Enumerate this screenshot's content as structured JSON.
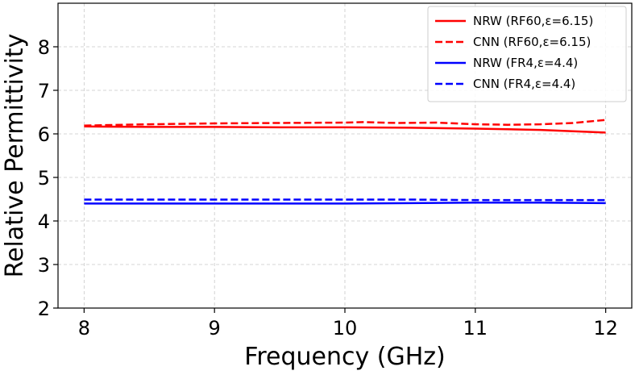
{
  "chart_data": {
    "type": "line",
    "xlabel": "Frequency (GHz)",
    "ylabel": "Relative Permittivity",
    "xlim": [
      7.8,
      12.2
    ],
    "ylim": [
      2,
      9
    ],
    "xticks": [
      8,
      9,
      10,
      11,
      12
    ],
    "yticks": [
      2,
      3,
      4,
      5,
      6,
      7,
      8
    ],
    "grid": true,
    "legend_position": "top-right",
    "series": [
      {
        "name": "NRW (RF60,ε=6.15)",
        "color": "#ff0000",
        "style": "solid",
        "x": [
          8,
          8.5,
          9,
          9.5,
          10,
          10.5,
          11,
          11.5,
          12
        ],
        "y": [
          6.17,
          6.16,
          6.16,
          6.15,
          6.15,
          6.14,
          6.12,
          6.09,
          6.03
        ]
      },
      {
        "name": "CNN (RF60,ε=6.15)",
        "color": "#ff0000",
        "style": "dashed",
        "x": [
          8,
          8.5,
          9,
          9.5,
          10,
          10.15,
          10.4,
          10.7,
          11,
          11.25,
          11.5,
          11.75,
          12
        ],
        "y": [
          6.19,
          6.22,
          6.24,
          6.25,
          6.26,
          6.27,
          6.25,
          6.26,
          6.22,
          6.21,
          6.22,
          6.25,
          6.32
        ]
      },
      {
        "name": "NRW (FR4,ε=4.4)",
        "color": "#0000ff",
        "style": "solid",
        "x": [
          8,
          8.5,
          9,
          9.5,
          10,
          10.5,
          11,
          11.5,
          12
        ],
        "y": [
          4.4,
          4.4,
          4.4,
          4.4,
          4.4,
          4.41,
          4.42,
          4.42,
          4.41
        ]
      },
      {
        "name": "CNN (FR4,ε=4.4)",
        "color": "#0000ff",
        "style": "dashed",
        "x": [
          8,
          8.5,
          9,
          9.5,
          10,
          10.5,
          11,
          11.5,
          12
        ],
        "y": [
          4.49,
          4.49,
          4.49,
          4.49,
          4.49,
          4.49,
          4.48,
          4.48,
          4.48
        ]
      }
    ]
  }
}
